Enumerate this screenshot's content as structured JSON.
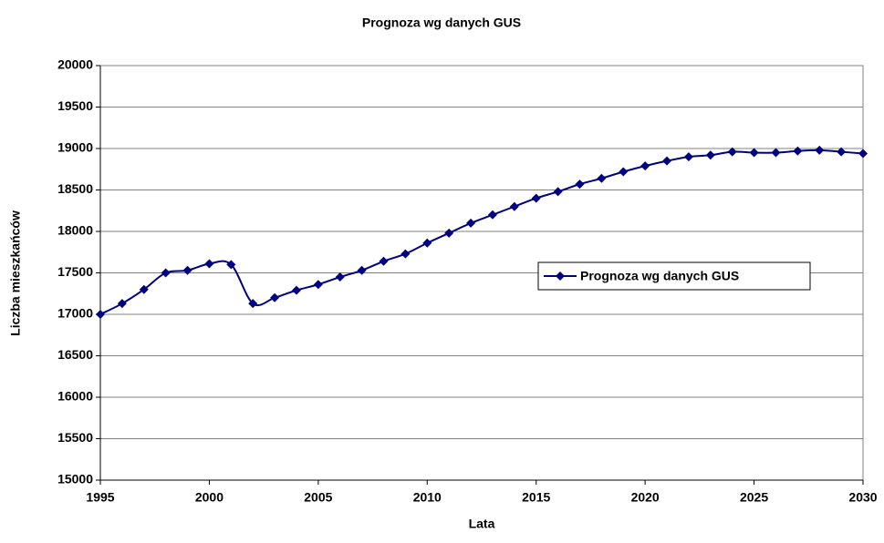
{
  "chart_data": {
    "type": "line",
    "title": "Prognoza wg danych GUS",
    "x_label": "Lata",
    "y_label": "Liczba mieszkańców",
    "x": [
      1995,
      1996,
      1997,
      1998,
      1999,
      2000,
      2001,
      2002,
      2003,
      2004,
      2005,
      2006,
      2007,
      2008,
      2009,
      2010,
      2011,
      2012,
      2013,
      2014,
      2015,
      2016,
      2017,
      2018,
      2019,
      2020,
      2021,
      2022,
      2023,
      2024,
      2025,
      2026,
      2027,
      2028,
      2029,
      2030
    ],
    "series": [
      {
        "name": "Prognoza wg danych GUS",
        "color": "#000080",
        "values": [
          17000,
          17130,
          17300,
          17500,
          17530,
          17610,
          17600,
          17130,
          17200,
          17290,
          17360,
          17450,
          17530,
          17640,
          17730,
          17860,
          17980,
          18100,
          18200,
          18300,
          18400,
          18480,
          18570,
          18640,
          18720,
          18790,
          18850,
          18900,
          18920,
          18960,
          18950,
          18950,
          18970,
          18980,
          18960,
          18940
        ]
      }
    ],
    "xlim": [
      1995,
      2030
    ],
    "xticks": [
      1995,
      2000,
      2005,
      2010,
      2015,
      2020,
      2025,
      2030
    ],
    "ylim": [
      15000,
      20000
    ],
    "yticks": [
      15000,
      15500,
      16000,
      16500,
      17000,
      17500,
      18000,
      18500,
      19000,
      19500,
      20000
    ],
    "grid": true,
    "legend": "center right"
  }
}
